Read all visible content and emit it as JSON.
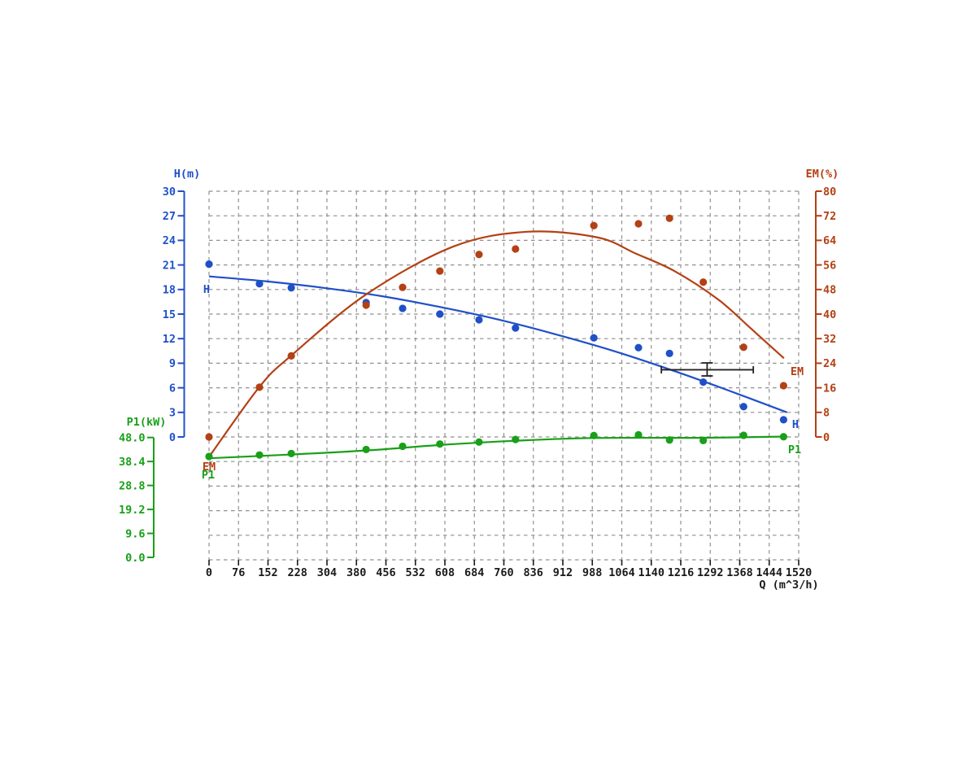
{
  "page": {
    "background": "#ffffff"
  },
  "labels": {
    "h_axis_title": "H(m)",
    "em_axis_title": "EM(%)",
    "p1_axis_title": "P1(kW)",
    "q_axis_title": "Q (m^3/h)",
    "h_curve_left": "H",
    "em_curve_origin": "EM",
    "p1_curve_origin": "P1",
    "em_curve_right": "EM",
    "h_curve_right": "H",
    "p1_curve_right": "P1"
  },
  "colors": {
    "h": "#2050c8",
    "em": "#b34114",
    "p1": "#18a018",
    "q_text": "#1a1a1a",
    "grid": "#8f8f8f",
    "marker": "#222222"
  },
  "chart_data": {
    "type": "scatter",
    "title": "",
    "grid": {
      "on": true,
      "style": "dashed",
      "color": "#8f8f8f"
    },
    "axes": {
      "q": {
        "label": "Q (m^3/h)",
        "range": [
          0,
          1520
        ],
        "position": "bottom",
        "ticks": [
          "0",
          "76",
          "152",
          "228",
          "304",
          "380",
          "456",
          "532",
          "608",
          "684",
          "760",
          "836",
          "912",
          "988",
          "1064",
          "1140",
          "1216",
          "1292",
          "1368",
          "1444",
          "1520"
        ]
      },
      "h": {
        "label": "H(m)",
        "range": [
          0,
          30
        ],
        "position": "left",
        "color": "#2050c8",
        "ticks": [
          "30",
          "27",
          "24",
          "21",
          "18",
          "15",
          "12",
          "9",
          "6",
          "3",
          "0"
        ]
      },
      "em": {
        "label": "EM(%)",
        "range": [
          0,
          80
        ],
        "position": "right",
        "color": "#b34114",
        "ticks": [
          "80",
          "72",
          "64",
          "56",
          "48",
          "40",
          "32",
          "24",
          "16",
          "8",
          "0"
        ]
      },
      "p1": {
        "label": "P1(kW)",
        "range": [
          0,
          48
        ],
        "position": "lower-left",
        "color": "#18a018",
        "ticks": [
          "48.0",
          "38.4",
          "28.8",
          "19.2",
          "9.6",
          "0.0"
        ]
      }
    },
    "series": [
      {
        "id": "h",
        "name": "H",
        "axis": "h",
        "color": "#2050c8",
        "points_q": [
          0,
          130,
          212,
          405,
          499,
          595,
          696,
          790,
          992,
          1107,
          1187,
          1274,
          1378,
          1481
        ],
        "points_v": [
          21.1,
          18.7,
          18.2,
          16.4,
          15.7,
          15.0,
          14.3,
          13.3,
          12.1,
          10.9,
          10.2,
          6.7,
          3.7,
          2.1
        ],
        "curve": [
          [
            0,
            19.6
          ],
          [
            148,
            19.0
          ],
          [
            296,
            18.2
          ],
          [
            444,
            17.2
          ],
          [
            592,
            15.9
          ],
          [
            740,
            14.4
          ],
          [
            888,
            12.6
          ],
          [
            1036,
            10.6
          ],
          [
            1184,
            8.3
          ],
          [
            1332,
            5.8
          ],
          [
            1490,
            3.0
          ]
        ]
      },
      {
        "id": "em",
        "name": "EM",
        "axis": "em",
        "color": "#b34114",
        "points_q": [
          0,
          130,
          212,
          405,
          499,
          595,
          696,
          790,
          992,
          1107,
          1187,
          1274,
          1378,
          1481
        ],
        "points_v": [
          0.0,
          16.2,
          26.4,
          42.9,
          48.7,
          54.0,
          59.4,
          61.2,
          68.8,
          69.4,
          71.2,
          50.4,
          29.2,
          16.7
        ],
        "curve": [
          [
            0,
            -6.5
          ],
          [
            130,
            16.3
          ],
          [
            212,
            26.5
          ],
          [
            405,
            46.4
          ],
          [
            630,
            62.0
          ],
          [
            820,
            66.8
          ],
          [
            1000,
            65.0
          ],
          [
            1100,
            59.7
          ],
          [
            1200,
            54.0
          ],
          [
            1313,
            44.7
          ],
          [
            1396,
            35.4
          ],
          [
            1482,
            25.6
          ]
        ]
      },
      {
        "id": "p1",
        "name": "P1",
        "axis": "p1",
        "color": "#18a018",
        "points_q": [
          0,
          130,
          212,
          405,
          499,
          595,
          696,
          790,
          992,
          1107,
          1187,
          1274,
          1378,
          1481
        ],
        "points_v": [
          40.4,
          41.0,
          41.6,
          43.2,
          44.5,
          45.4,
          46.2,
          47.2,
          48.8,
          49.1,
          47.0,
          46.8,
          48.9,
          48.3
        ],
        "curve": [
          [
            0,
            39.7
          ],
          [
            212,
            41.2
          ],
          [
            405,
            42.8
          ],
          [
            595,
            45.0
          ],
          [
            790,
            46.7
          ],
          [
            992,
            47.8
          ],
          [
            1274,
            47.9
          ],
          [
            1490,
            48.4
          ]
        ]
      }
    ],
    "duty_marker": {
      "type": "error-bar",
      "color": "#222222",
      "q": 1284,
      "h": 8.2,
      "q_low": 1166,
      "q_high": 1403,
      "h_low": 7.45,
      "h_high": 9.04
    }
  }
}
